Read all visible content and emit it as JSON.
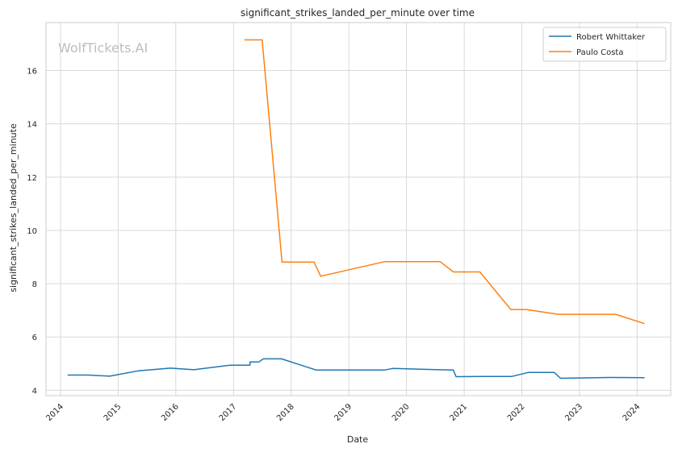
{
  "watermark": "WolfTickets.AI",
  "chart_data": {
    "type": "line",
    "title": "significant_strikes_landed_per_minute over time",
    "xlabel": "Date",
    "ylabel": "significant_strikes_landed_per_minute",
    "x_ticks": [
      "2014",
      "2015",
      "2016",
      "2017",
      "2018",
      "2019",
      "2020",
      "2021",
      "2022",
      "2023",
      "2024"
    ],
    "y_ticks": [
      "4",
      "6",
      "8",
      "10",
      "12",
      "14",
      "16"
    ],
    "xlim": [
      "2013-10",
      "2024-08"
    ],
    "ylim": [
      3.8,
      17.8
    ],
    "grid": true,
    "legend_position": "top-right",
    "series": [
      {
        "name": "Robert Whittaker",
        "color": "#1f77b4",
        "points": [
          [
            "2014-02-15",
            4.57
          ],
          [
            "2014-06-28",
            4.57
          ],
          [
            "2014-11-08",
            4.53
          ],
          [
            "2015-05-10",
            4.73
          ],
          [
            "2015-11-28",
            4.83
          ],
          [
            "2016-04-24",
            4.77
          ],
          [
            "2016-12-10",
            4.94
          ],
          [
            "2017-04-15",
            4.94
          ],
          [
            "2017-04-16",
            5.06
          ],
          [
            "2017-06-10",
            5.06
          ],
          [
            "2017-07-08",
            5.18
          ],
          [
            "2017-11-01",
            5.18
          ],
          [
            "2018-06-09",
            4.76
          ],
          [
            "2019-08-15",
            4.76
          ],
          [
            "2019-10-06",
            4.82
          ],
          [
            "2020-07-25",
            4.77
          ],
          [
            "2020-10-24",
            4.76
          ],
          [
            "2020-11-10",
            4.51
          ],
          [
            "2021-04-17",
            4.52
          ],
          [
            "2021-10-30",
            4.52
          ],
          [
            "2022-02-12",
            4.67
          ],
          [
            "2022-07-25",
            4.67
          ],
          [
            "2022-09-03",
            4.45
          ],
          [
            "2023-07-08",
            4.48
          ],
          [
            "2024-02-17",
            4.47
          ]
        ]
      },
      {
        "name": "Paulo Costa",
        "color": "#ff7f0e",
        "points": [
          [
            "2017-03-11",
            17.15
          ],
          [
            "2017-07-01",
            17.15
          ],
          [
            "2017-11-04",
            8.81
          ],
          [
            "2018-05-26",
            8.81
          ],
          [
            "2018-07-07",
            8.28
          ],
          [
            "2019-08-17",
            8.83
          ],
          [
            "2020-08-01",
            8.83
          ],
          [
            "2020-10-24",
            8.44
          ],
          [
            "2021-04-10",
            8.44
          ],
          [
            "2021-10-23",
            7.03
          ],
          [
            "2022-02-01",
            7.03
          ],
          [
            "2022-08-20",
            6.85
          ],
          [
            "2023-08-19",
            6.85
          ],
          [
            "2024-02-17",
            6.5
          ]
        ]
      }
    ]
  }
}
